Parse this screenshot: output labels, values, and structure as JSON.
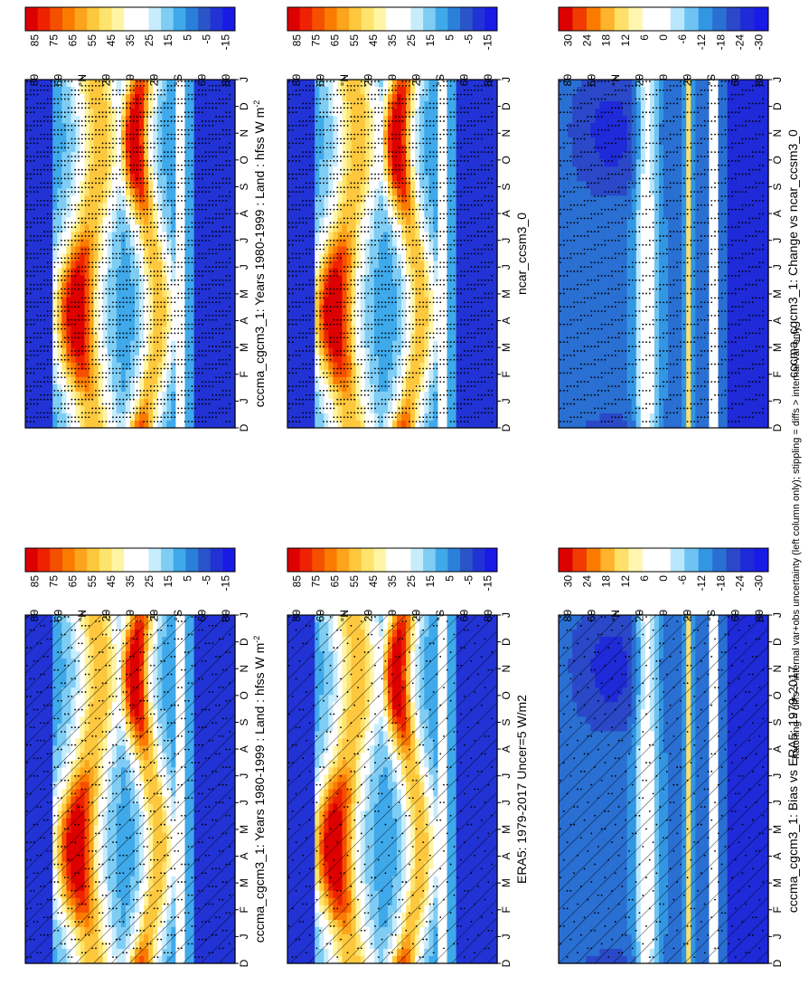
{
  "footer_note": "hatching = diffs > internal var+obs uncertainty (left column only); stippling = diffs > internal var only",
  "months": [
    "D",
    "J",
    "F",
    "M",
    "A",
    "M",
    "J",
    "J",
    "A",
    "S",
    "O",
    "N",
    "D",
    "J"
  ],
  "lat_ticks": [
    "80",
    "60",
    "°N",
    "20",
    "0",
    "20",
    "°S",
    "60",
    "80"
  ],
  "colors": {
    "abs_palette": [
      "#dd0000",
      "#ee2200",
      "#f54f00",
      "#fb7b00",
      "#fca41c",
      "#fdc83e",
      "#fee36c",
      "#fff5a4",
      "#ffffff",
      "#ffffff",
      "#c7ecfc",
      "#7fcdf5",
      "#3fa9ea",
      "#2a7fd9",
      "#2a55c8",
      "#2233d5",
      "#1a1ae6"
    ],
    "diff_palette": [
      "#dd0000",
      "#f03c00",
      "#fb7b00",
      "#fdb32c",
      "#fee06a",
      "#fff6b0",
      "#ffffff",
      "#ffffff",
      "#b9e6fb",
      "#6ec3f2",
      "#3296e3",
      "#2a6fd2",
      "#2a48c8",
      "#1f2ad8",
      "#1a1ae6"
    ]
  },
  "panels": [
    {
      "id": "model_abs",
      "title": "cccma_cgcm3_1: Years 1980-1999 : Land : hfss W m",
      "unit_sup": "-2",
      "colorbar": "abs",
      "hatch": true,
      "stipple_density": 0.18
    },
    {
      "id": "obs",
      "title": "ERA5: 1979-2017 Uncer=5 W/m2",
      "colorbar": "abs",
      "hatch": true,
      "stipple_density": 0.1
    },
    {
      "id": "bias",
      "title": "cccma_cgcm3_1: Bias vs ERA5: 1979-2017",
      "colorbar": "diff",
      "hatch": true,
      "stipple_density": 0.1
    },
    {
      "id": "model_abs_2",
      "title": "cccma_cgcm3_1: Years 1980-1999 : Land : hfss W m",
      "unit_sup": "-2",
      "colorbar": "abs",
      "hatch": false,
      "stipple_density": 0.55
    },
    {
      "id": "ref_model",
      "title": "ncar_ccsm3_0",
      "colorbar": "abs",
      "hatch": false,
      "stipple_density": 0.5
    },
    {
      "id": "change",
      "title": "cccma_cgcm3_1: Change vs ncar_ccsm3_0",
      "colorbar": "diff",
      "hatch": false,
      "stipple_density": 0.35
    }
  ],
  "colorbars": {
    "abs": [
      "85",
      "75",
      "65",
      "55",
      "45",
      "35",
      "25",
      "15",
      "5",
      "-5",
      "-15"
    ],
    "diff": [
      "30",
      "24",
      "18",
      "12",
      "6",
      "0",
      "-6",
      "-12",
      "-18",
      "-24",
      "-30"
    ]
  },
  "chart_data": {
    "type": "heatmap",
    "x_axis": {
      "label": "",
      "ticks": [
        "D",
        "J",
        "F",
        "M",
        "A",
        "M",
        "J",
        "J",
        "A",
        "S",
        "O",
        "N",
        "D",
        "J"
      ]
    },
    "y_axis": {
      "label": "",
      "ticks": [
        "80",
        "60",
        "°N",
        "20",
        "0",
        "20",
        "°S",
        "60",
        "80"
      ],
      "range_deg": [
        -90,
        90
      ]
    },
    "variable": "hfss",
    "units": "W m-2",
    "panels": [
      {
        "title": "cccma_cgcm3_1: Years 1980-1999 : Land : hfss W m-2",
        "colorbar_ticks": [
          85,
          75,
          65,
          55,
          45,
          35,
          25,
          15,
          5,
          -5,
          -15
        ]
      },
      {
        "title": "ERA5: 1979-2017 Uncer=5 W/m2",
        "colorbar_ticks": [
          85,
          75,
          65,
          55,
          45,
          35,
          25,
          15,
          5,
          -5,
          -15
        ]
      },
      {
        "title": "cccma_cgcm3_1: Bias vs ERA5: 1979-2017",
        "colorbar_ticks": [
          30,
          24,
          18,
          12,
          6,
          0,
          -6,
          -12,
          -18,
          -24,
          -30
        ]
      },
      {
        "title": "cccma_cgcm3_1: Years 1980-1999 : Land : hfss W m-2",
        "colorbar_ticks": [
          85,
          75,
          65,
          55,
          45,
          35,
          25,
          15,
          5,
          -5,
          -15
        ]
      },
      {
        "title": "ncar_ccsm3_0",
        "colorbar_ticks": [
          85,
          75,
          65,
          55,
          45,
          35,
          25,
          15,
          5,
          -5,
          -15
        ]
      },
      {
        "title": "cccma_cgcm3_1: Change vs ncar_ccsm3_0",
        "colorbar_ticks": [
          30,
          24,
          18,
          12,
          6,
          0,
          -6,
          -12,
          -18,
          -24,
          -30
        ]
      }
    ]
  }
}
